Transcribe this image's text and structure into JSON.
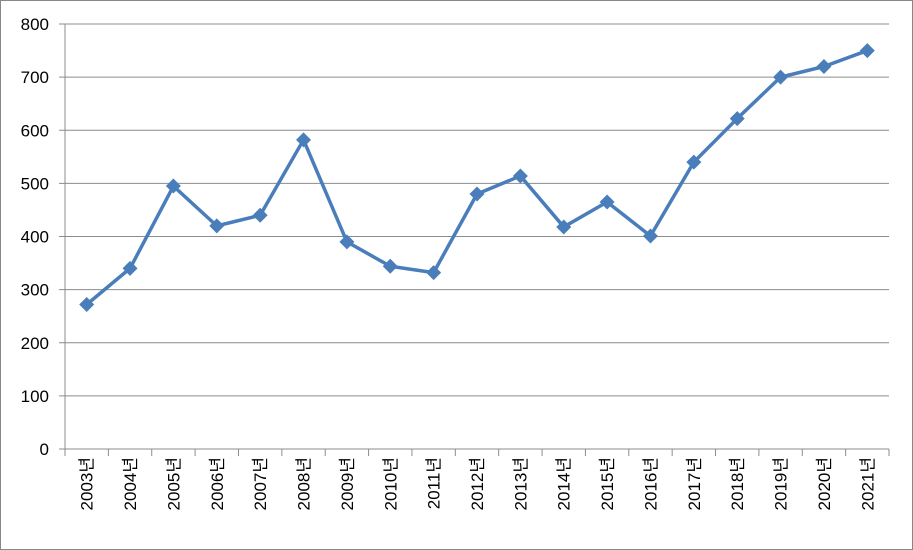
{
  "chart_data": {
    "type": "line",
    "categories": [
      "2003년",
      "2004년",
      "2005년",
      "2006년",
      "2007년",
      "2008년",
      "2009년",
      "2010년",
      "2011년",
      "2012년",
      "2013년",
      "2014년",
      "2015년",
      "2016년",
      "2017년",
      "2018년",
      "2019년",
      "2020년",
      "2021년"
    ],
    "values": [
      272,
      340,
      495,
      420,
      440,
      582,
      390,
      344,
      332,
      480,
      514,
      418,
      465,
      401,
      540,
      622,
      700,
      720,
      750
    ],
    "color": "#4a7ebb",
    "ylim": [
      0,
      800
    ],
    "yticks": [
      0,
      100,
      200,
      300,
      400,
      500,
      600,
      700,
      800
    ],
    "grid": true
  }
}
